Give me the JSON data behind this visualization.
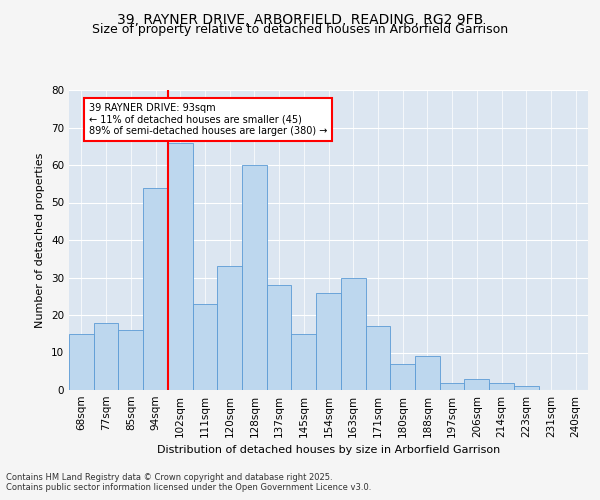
{
  "title": "39, RAYNER DRIVE, ARBORFIELD, READING, RG2 9FB",
  "subtitle": "Size of property relative to detached houses in Arborfield Garrison",
  "xlabel": "Distribution of detached houses by size in Arborfield Garrison",
  "ylabel": "Number of detached properties",
  "categories": [
    "68sqm",
    "77sqm",
    "85sqm",
    "94sqm",
    "102sqm",
    "111sqm",
    "120sqm",
    "128sqm",
    "137sqm",
    "145sqm",
    "154sqm",
    "163sqm",
    "171sqm",
    "180sqm",
    "188sqm",
    "197sqm",
    "206sqm",
    "214sqm",
    "223sqm",
    "231sqm",
    "240sqm"
  ],
  "bar_heights": [
    15,
    18,
    16,
    54,
    66,
    23,
    33,
    60,
    28,
    15,
    26,
    30,
    17,
    7,
    9,
    2,
    3,
    2,
    1,
    0,
    0
  ],
  "bar_color": "#bdd7ee",
  "bar_edge_color": "#5b9bd5",
  "vline_index": 3.5,
  "vline_color": "red",
  "annotation_text": "39 RAYNER DRIVE: 93sqm\n← 11% of detached houses are smaller (45)\n89% of semi-detached houses are larger (380) →",
  "annotation_box_color": "white",
  "annotation_box_edge": "red",
  "ylim": [
    0,
    80
  ],
  "yticks": [
    0,
    10,
    20,
    30,
    40,
    50,
    60,
    70,
    80
  ],
  "footnote": "Contains HM Land Registry data © Crown copyright and database right 2025.\nContains public sector information licensed under the Open Government Licence v3.0.",
  "background_color": "#dce6f1",
  "plot_bg_color": "#dce6f1",
  "title_fontsize": 10,
  "subtitle_fontsize": 9,
  "axis_label_fontsize": 8,
  "tick_fontsize": 7.5
}
